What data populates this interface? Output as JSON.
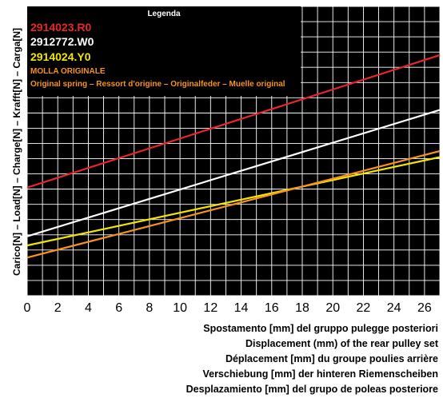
{
  "chart_data": {
    "type": "line",
    "ylabel": "Carico[N] – Load[N] – Charge[N] – Krafft[N] – Carga[N]",
    "xlabel": [
      "Spostamento [mm] del gruppo pulegge posteriori",
      "Displacement (mm) of the rear pulley set",
      "Déplacement [mm] du groupe poulies arrière",
      "Verschiebung [mm] der hinteren Riemenscheiben",
      "Desplazamiento [mm] del grupo de poleas posteriore"
    ],
    "xticks": [
      "0",
      "2",
      "4",
      "6",
      "8",
      "10",
      "12",
      "14",
      "16",
      "18",
      "20",
      "22",
      "24",
      "26"
    ],
    "xlim": [
      0,
      27
    ],
    "ylim": [
      0,
      19
    ],
    "grid": true,
    "background": "#000000",
    "legend": {
      "title": "Legenda",
      "position": "top-left",
      "entries": [
        {
          "label": "2914023.R0",
          "color": "#e8262b"
        },
        {
          "label": "2912772.W0",
          "color": "#ffffff"
        },
        {
          "label": "2914024.Y0",
          "color": "#f2e600"
        },
        {
          "label": "MOLLA ORIGINALE",
          "color": "#f7931e"
        },
        {
          "label": "Original spring – Ressort d'origine – Originalfeder – Muelle original",
          "color": "#f7931e"
        }
      ]
    },
    "series": [
      {
        "name": "2914023.R0",
        "color": "#e8262b",
        "x": [
          0,
          27
        ],
        "y": [
          7.1,
          15.8
        ]
      },
      {
        "name": "2912772.W0",
        "color": "#ffffff",
        "x": [
          0,
          27
        ],
        "y": [
          3.9,
          12.2
        ]
      },
      {
        "name": "2914024.Y0",
        "color": "#f2e600",
        "x": [
          0,
          27
        ],
        "y": [
          3.3,
          9.1
        ]
      },
      {
        "name": "MOLLA ORIGINALE",
        "color": "#f7931e",
        "x": [
          0,
          27
        ],
        "y": [
          2.5,
          9.5
        ]
      }
    ]
  }
}
